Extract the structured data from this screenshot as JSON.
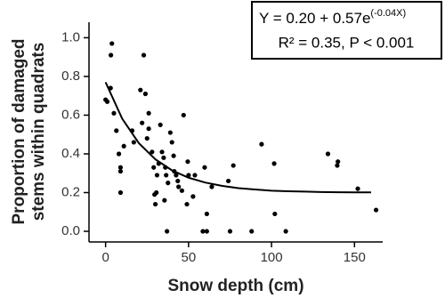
{
  "chart_data": {
    "type": "scatter",
    "xlabel": "Snow depth (cm)",
    "ylabel": [
      "Proportion of damaged",
      "stems within quadrats"
    ],
    "annotation": {
      "equation": "Y = 0.20 + 0.57e",
      "equation_exponent": "(-0.04X)",
      "stats": "R² = 0.35, P < 0.001"
    },
    "xlim": [
      -10,
      167
    ],
    "ylim": [
      -0.055,
      1.08
    ],
    "xticks": [
      0,
      50,
      100,
      150
    ],
    "yticks": [
      {
        "value": 0,
        "label": "0.0"
      },
      0.2,
      0.4,
      0.6,
      0.8,
      {
        "value": 1,
        "label": "1.0"
      }
    ],
    "series": [
      {
        "type": "scatter",
        "color": "#000000",
        "x": [
          3.8,
          3.2,
          0,
          1,
          3,
          5,
          6.5,
          8,
          9,
          9,
          9,
          11,
          16,
          17,
          23,
          21,
          24,
          22,
          25,
          26,
          26,
          28,
          29,
          29.5,
          30.6,
          32,
          31,
          30,
          33,
          34,
          35,
          36,
          36.5,
          37.6,
          35.5,
          37,
          39,
          40,
          41,
          41.4,
          42.5,
          43.5,
          44,
          47,
          46,
          49.5,
          49,
          52.7,
          53.8,
          50,
          58.6,
          59.7,
          61,
          64,
          61,
          75,
          77,
          74,
          88,
          94,
          101.6,
          102,
          108.6,
          134,
          140,
          139.6,
          152,
          163
        ],
        "values": [
          0.97,
          0.91,
          0.68,
          0.67,
          0.74,
          0.61,
          0.52,
          0.4,
          0.33,
          0.31,
          0.2,
          0.44,
          0.52,
          0.46,
          0.91,
          0.73,
          0.71,
          0.56,
          0.48,
          0.61,
          0.53,
          0.41,
          0.33,
          0.19,
          0.2,
          0.35,
          0.29,
          0.14,
          0.55,
          0.41,
          0.38,
          0.33,
          0.29,
          0.25,
          0.16,
          0.0,
          0.51,
          0.46,
          0.39,
          0.31,
          0.29,
          0.26,
          0.23,
          0.6,
          0.21,
          0.36,
          0.14,
          0.18,
          0.29,
          0.29,
          0.0,
          0.33,
          0.09,
          0.23,
          0.0,
          0.0,
          0.34,
          0.26,
          0.0,
          0.45,
          0.35,
          0.09,
          0.0,
          0.4,
          0.36,
          0.34,
          0.22,
          0.11
        ]
      },
      {
        "type": "line",
        "color": "#000000",
        "x": [
          0,
          10,
          20,
          30,
          40,
          50,
          60,
          70,
          80,
          90,
          100,
          110,
          120,
          130,
          140,
          150,
          160
        ],
        "values": [
          0.77,
          0.582,
          0.456,
          0.372,
          0.315,
          0.277,
          0.252,
          0.235,
          0.223,
          0.216,
          0.21,
          0.207,
          0.205,
          0.203,
          0.202,
          0.201,
          0.201
        ]
      }
    ]
  }
}
